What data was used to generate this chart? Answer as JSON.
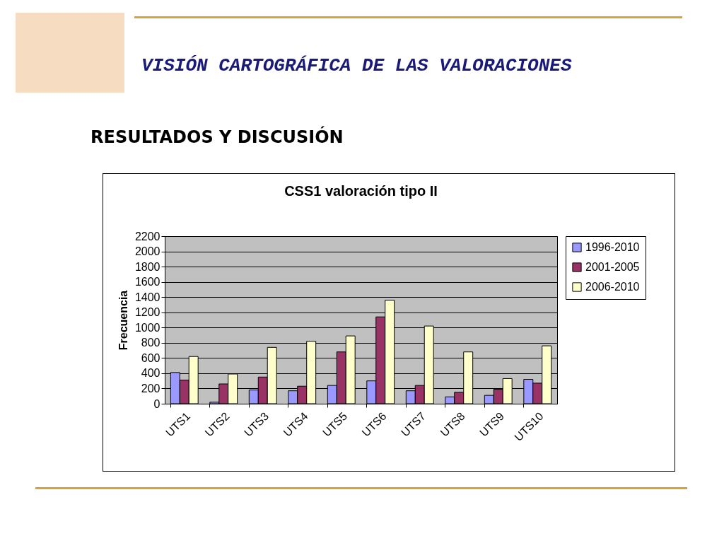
{
  "chart_data": {
    "type": "bar",
    "title": "CSS1 valoración tipo II",
    "ylabel": "Frecuencia",
    "annotations": [
      "VISIÓN CARTOGRÁFICA DE LAS VALORACIONES",
      "RESULTADOS Y DISCUSIÓN"
    ],
    "categories": [
      "UTS1",
      "UTS2",
      "UTS3",
      "UTS4",
      "UTS5",
      "UTS6",
      "UTS7",
      "UTS8",
      "UTS9",
      "UTS10"
    ],
    "series": [
      {
        "name": "1996-2010",
        "color": "#9999ff",
        "values": [
          410,
          20,
          180,
          170,
          240,
          300,
          170,
          90,
          110,
          320
        ]
      },
      {
        "name": "2001-2005",
        "color": "#993366",
        "values": [
          310,
          260,
          350,
          230,
          680,
          1140,
          240,
          150,
          190,
          270
        ]
      },
      {
        "name": "2006-2010",
        "color": "#ffffcc",
        "values": [
          620,
          390,
          740,
          820,
          890,
          1360,
          1020,
          680,
          330,
          760
        ]
      }
    ],
    "ylim": [
      0,
      2200
    ],
    "yticks": [
      0,
      200,
      400,
      600,
      800,
      1000,
      1200,
      1400,
      1600,
      1800,
      2000,
      2200
    ],
    "grid": "y",
    "legend": "right"
  }
}
